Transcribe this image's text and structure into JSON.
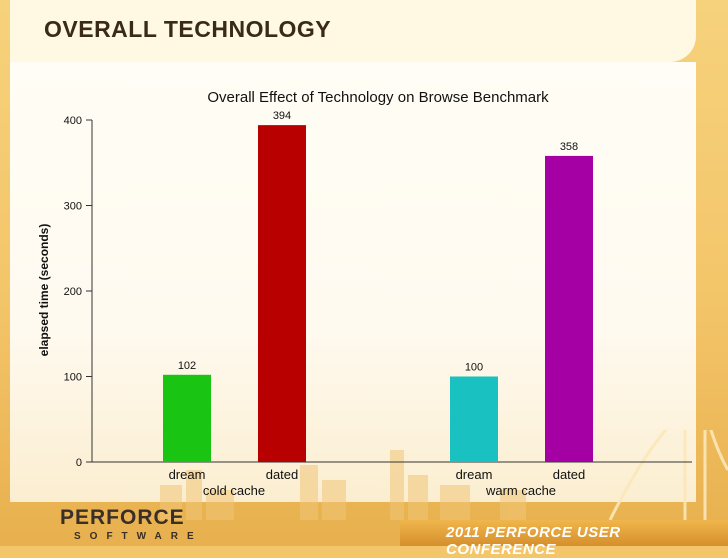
{
  "slide": {
    "title": "OVERALL TECHNOLOGY",
    "logo_main": "PERFORCE",
    "logo_sub": "SOFTWARE",
    "conference": "2011 PERFORCE USER CONFERENCE"
  },
  "colors": {
    "dream_cold": "#19c412",
    "dated_cold": "#b80000",
    "dream_warm": "#19c2c0",
    "dated_warm": "#a400a4"
  },
  "chart_data": {
    "type": "bar",
    "title": "Overall Effect of Technology on Browse Benchmark",
    "ylabel": "elapsed time (seconds)",
    "ylim": [
      0,
      400
    ],
    "yticks": [
      0,
      100,
      200,
      300,
      400
    ],
    "groups": [
      "cold cache",
      "warm cache"
    ],
    "categories": [
      "dream",
      "dated",
      "dream",
      "dated"
    ],
    "values": [
      102,
      394,
      100,
      358
    ],
    "grid": false
  }
}
